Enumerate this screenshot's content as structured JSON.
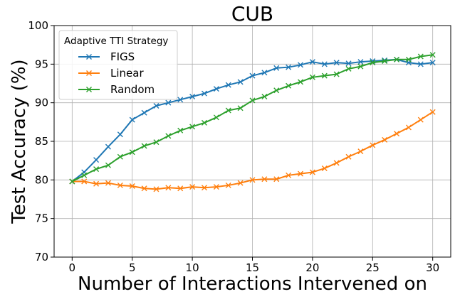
{
  "chart_data": {
    "type": "line",
    "title": "CUB",
    "xlabel": "Number of Interactions Intervened on",
    "ylabel": "Test Accuracy (%)",
    "xlim": [
      -1.5,
      31.5
    ],
    "ylim": [
      70,
      100
    ],
    "xticks": [
      0,
      5,
      10,
      15,
      20,
      25,
      30
    ],
    "yticks": [
      70,
      75,
      80,
      85,
      90,
      95,
      100
    ],
    "grid": true,
    "legend": {
      "title": "Adaptive TTI Strategy",
      "position": "top-left"
    },
    "marker": "x",
    "x": [
      0,
      1,
      2,
      3,
      4,
      5,
      6,
      7,
      8,
      9,
      10,
      11,
      12,
      13,
      14,
      15,
      16,
      17,
      18,
      19,
      20,
      21,
      22,
      23,
      24,
      25,
      26,
      27,
      28,
      29,
      30
    ],
    "series": [
      {
        "name": "FIGS",
        "color": "#1f77b4",
        "values": [
          79.8,
          81.0,
          82.6,
          84.3,
          85.9,
          87.8,
          88.7,
          89.6,
          90.0,
          90.4,
          90.8,
          91.2,
          91.8,
          92.3,
          92.7,
          93.5,
          93.9,
          94.5,
          94.6,
          94.9,
          95.3,
          95.0,
          95.2,
          95.1,
          95.3,
          95.4,
          95.5,
          95.6,
          95.2,
          95.0,
          95.2
        ]
      },
      {
        "name": "Linear",
        "color": "#ff7f0e",
        "values": [
          79.8,
          79.8,
          79.5,
          79.6,
          79.3,
          79.2,
          78.9,
          78.8,
          79.0,
          78.9,
          79.1,
          79.0,
          79.1,
          79.3,
          79.6,
          80.0,
          80.1,
          80.1,
          80.6,
          80.8,
          81.0,
          81.5,
          82.2,
          83.0,
          83.7,
          84.5,
          85.2,
          86.0,
          86.8,
          87.8,
          88.8
        ]
      },
      {
        "name": "Random",
        "color": "#2ca02c",
        "values": [
          79.8,
          80.6,
          81.4,
          81.9,
          83.0,
          83.6,
          84.4,
          84.9,
          85.7,
          86.4,
          86.9,
          87.4,
          88.1,
          89.0,
          89.3,
          90.3,
          90.8,
          91.6,
          92.2,
          92.7,
          93.3,
          93.5,
          93.7,
          94.4,
          94.7,
          95.2,
          95.4,
          95.6,
          95.6,
          96.0,
          96.2
        ]
      }
    ]
  }
}
